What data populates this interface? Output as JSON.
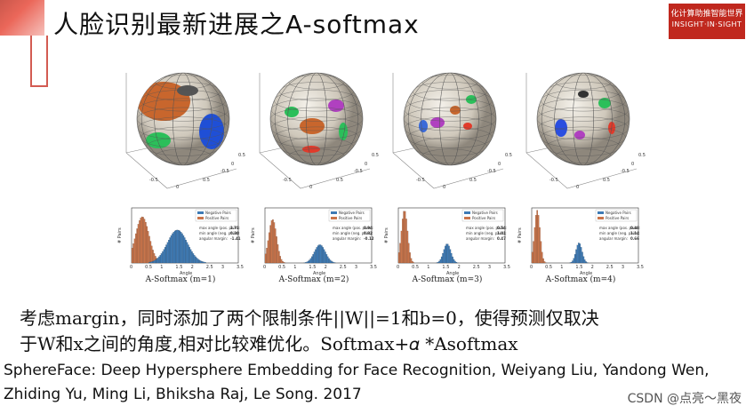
{
  "title": "人脸识别最新进展之A-softmax",
  "logo": {
    "line1": "化计算助推智能世界",
    "line2": "INSIGHT·IN·SIGHT"
  },
  "figure": {
    "panels": [
      {
        "caption": "A-Softmax (m=1)",
        "max_angle": "1.71",
        "min_angle": "0.30",
        "margin": "-1.41"
      },
      {
        "caption": "A-Softmax (m=2)",
        "max_angle": "0.94",
        "min_angle": "0.82",
        "margin": "-0.12"
      },
      {
        "caption": "A-Softmax (m=3)",
        "max_angle": "0.54",
        "min_angle": "1.01",
        "margin": "0.47"
      },
      {
        "caption": "A-Softmax (m=4)",
        "max_angle": "0.48",
        "min_angle": "1.14",
        "margin": "0.66"
      }
    ],
    "legend": {
      "neg": "Negative Pairs",
      "pos": "Positive Pairs"
    },
    "labels": {
      "max": "max angle (pos. pairs):",
      "min": "min angle (neg. pairs):",
      "margin": "angular margin:"
    },
    "xlabel": "Angle",
    "ylabel": "# Pairs",
    "xticks": [
      "0",
      "0.5",
      "1",
      "1.5",
      "2",
      "2.5",
      "3",
      "3.5"
    ],
    "sphere_ticks": [
      "-0.5",
      "0",
      "0.5",
      "-0.5",
      "0",
      "0.5"
    ],
    "colors": {
      "pos": "#c9744a",
      "neg": "#3d7ab5"
    }
  },
  "text": {
    "line1": "考虑margin，同时添加了两个限制条件||W||=1和b=0，使得预测仅取决",
    "line2": "于W和x之间的角度,相对比较难优化。Softmax+𝛼 *Asoftmax",
    "ref1": "SphereFace: Deep Hypersphere Embedding for Face Recognition, Weiyang Liu, Yandong Wen,",
    "ref2": "Zhiding Yu, Ming Li, Bhiksha Raj, Le Song. 2017"
  },
  "watermark": "CSDN @点亮～黑夜"
}
